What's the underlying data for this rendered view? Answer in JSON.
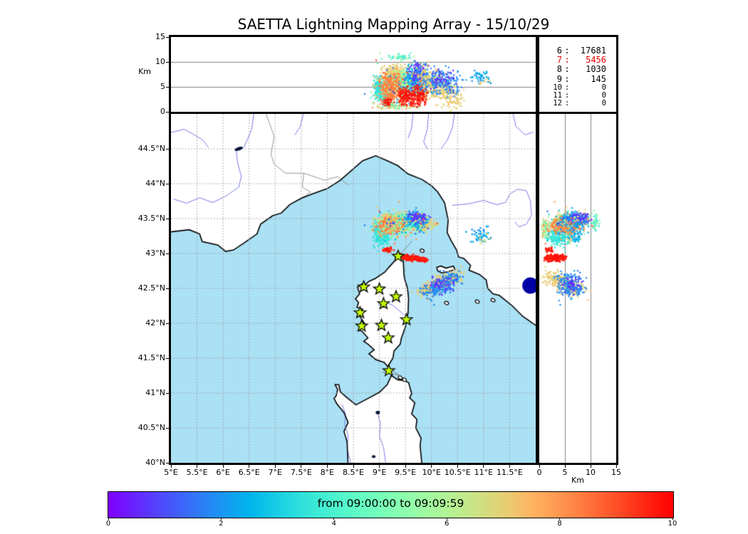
{
  "title": "SAETTA Lightning Mapping Array - 15/10/29",
  "colors": {
    "sea": "#ABE1F5",
    "land": "#FFFFFF",
    "coastline": "#000000",
    "grid_map": "#999999",
    "grid_panel": "#808080",
    "river": "#7B7BE8",
    "country_border": "#8A8A8A",
    "route_line": "#777777",
    "lake": "#001133",
    "star_fill": "#C3FF00",
    "star_edge": "#111111",
    "navy_marker": "#0000A5",
    "highlight_count": "#E60000",
    "panel_border": "#000000"
  },
  "axes": {
    "alt_lon_panel": {
      "ylabel": "Km",
      "ytick_values": [
        0,
        5,
        10,
        15
      ],
      "ytick_labels": [
        "0",
        "5",
        "10",
        "15"
      ],
      "ylim": [
        0,
        15
      ],
      "gridlines_alt": [
        5,
        10
      ]
    },
    "map_panel": {
      "xtick_values": [
        5,
        5.5,
        6,
        6.5,
        7,
        7.5,
        8,
        8.5,
        9,
        9.5,
        10,
        10.5,
        11,
        11.5
      ],
      "xtick_labels": [
        "5°E",
        "5.5°E",
        "6°E",
        "6.5°E",
        "7°E",
        "7.5°E",
        "8°E",
        "8.5°E",
        "9°E",
        "9.5°E",
        "10°E",
        "10.5°E",
        "11°E",
        "11.5°E"
      ],
      "ytick_values": [
        44.5,
        44,
        43.5,
        43,
        42.5,
        42,
        41.5,
        41,
        40.5,
        40
      ],
      "ytick_labels": [
        "44.5°N",
        "44°N",
        "43.5°N",
        "43°N",
        "42.5°N",
        "42°N",
        "41.5°N",
        "41°N",
        "40.5°N",
        "40°N"
      ],
      "lon_range": [
        5,
        12
      ],
      "lat_range": [
        40,
        45
      ],
      "grid_step_deg": 0.5
    },
    "alt_lat_panel": {
      "xlabel": "Km",
      "xtick_values": [
        0,
        5,
        10,
        15
      ],
      "xtick_labels": [
        "0",
        "5",
        "10",
        "15"
      ],
      "xlim": [
        0,
        15
      ],
      "gridlines_alt": [
        5,
        10
      ]
    }
  },
  "colorbar": {
    "label": "from 09:00:00 to 09:09:59",
    "tick_values": [
      0,
      2,
      4,
      6,
      8,
      10
    ],
    "tick_labels": [
      "0",
      "2",
      "4",
      "6",
      "8",
      "10"
    ],
    "range": [
      0,
      10
    ],
    "colormap": "rainbow"
  },
  "chart_data": {
    "type": "scatter",
    "title": "SAETTA Lightning Mapping Array - 15/10/29",
    "layout": "lon-alt top panel, lon-lat map, alt-lat side panel, time colorbar",
    "station_counts": [
      {
        "stations": "6",
        "events": "17681",
        "highlight": false
      },
      {
        "stations": "7",
        "events": "5456",
        "highlight": true
      },
      {
        "stations": "8",
        "events": "1030",
        "highlight": false
      },
      {
        "stations": "9",
        "events": "145",
        "highlight": false
      },
      {
        "stations": "10",
        "events": "0",
        "highlight": false
      },
      {
        "stations": "11",
        "events": "0",
        "highlight": false
      },
      {
        "stations": "12",
        "events": "0",
        "highlight": false
      }
    ],
    "stations_lonlat": [
      [
        9.36,
        42.96
      ],
      [
        8.7,
        42.52
      ],
      [
        9.0,
        42.49
      ],
      [
        9.32,
        42.38
      ],
      [
        9.08,
        42.28
      ],
      [
        8.63,
        42.15
      ],
      [
        9.52,
        42.05
      ],
      [
        8.66,
        41.96
      ],
      [
        9.04,
        41.97
      ],
      [
        9.17,
        41.79
      ],
      [
        9.18,
        41.32
      ]
    ],
    "edge_marker_lonlat": [
      11.9,
      42.54
    ],
    "clusters": [
      {
        "name": "storm-north-cyan-west",
        "shape": "blob",
        "lon": 9.0,
        "lat": 43.3,
        "sx": 0.06,
        "sy": 0.085,
        "alt": [
          2,
          7.5
        ],
        "t": [
          3.1,
          3.9
        ],
        "n": 230
      },
      {
        "name": "storm-north-cyan-col",
        "shape": "blob",
        "lon": 9.12,
        "lat": 43.21,
        "sx": 0.035,
        "sy": 0.045,
        "alt": [
          1,
          4.5
        ],
        "t": [
          3.2,
          3.9
        ],
        "n": 80
      },
      {
        "name": "storm-north-tan",
        "shape": "blob",
        "lon": 9.28,
        "lat": 43.47,
        "sx": 0.13,
        "sy": 0.045,
        "alt": [
          3,
          10
        ],
        "t": [
          6.7,
          7.3
        ],
        "n": 520
      },
      {
        "name": "storm-north-tan-east",
        "shape": "blob",
        "lon": 9.85,
        "lat": 43.42,
        "sx": 0.1,
        "sy": 0.05,
        "alt": [
          2,
          8
        ],
        "t": [
          6.6,
          7.2
        ],
        "n": 180
      },
      {
        "name": "storm-north-green",
        "shape": "blob",
        "lon": 9.52,
        "lat": 43.45,
        "sx": 0.11,
        "sy": 0.05,
        "alt": [
          3,
          9
        ],
        "t": [
          5.3,
          6.1
        ],
        "n": 320
      },
      {
        "name": "storm-north-orange",
        "shape": "blob",
        "lon": 9.22,
        "lat": 43.4,
        "sx": 0.085,
        "sy": 0.05,
        "alt": [
          2,
          8
        ],
        "t": [
          7.9,
          8.6
        ],
        "n": 520
      },
      {
        "name": "storm-north-blue",
        "shape": "blob",
        "lon": 9.68,
        "lat": 43.47,
        "sx": 0.095,
        "sy": 0.045,
        "alt": [
          3.5,
          10
        ],
        "t": [
          1.6,
          2.6
        ],
        "n": 260
      },
      {
        "name": "storm-north-purple",
        "shape": "blob",
        "lon": 9.75,
        "lat": 43.51,
        "sx": 0.075,
        "sy": 0.035,
        "alt": [
          5,
          10.5
        ],
        "t": [
          0.3,
          1.1
        ],
        "n": 110
      },
      {
        "name": "storm-high-sparse",
        "shape": "blob",
        "lon": 9.4,
        "lat": 43.45,
        "sx": 0.15,
        "sy": 0.06,
        "alt": [
          10,
          12
        ],
        "t": [
          3.0,
          6.0
        ],
        "n": 45
      },
      {
        "name": "storm-low-skirt",
        "shape": "blob",
        "lon": 9.3,
        "lat": 43.36,
        "sx": 0.18,
        "sy": 0.07,
        "alt": [
          0.3,
          2.2
        ],
        "t": [
          4.0,
          8.5
        ],
        "n": 110
      },
      {
        "name": "storm-noise",
        "shape": "blob",
        "lon": 9.4,
        "lat": 43.42,
        "sx": 0.28,
        "sy": 0.11,
        "alt": [
          0.5,
          11
        ],
        "t": [
          1.0,
          9.0
        ],
        "n": 130
      },
      {
        "name": "capcorse-red-streak",
        "shape": "diag",
        "lon0": 9.38,
        "lat0": 42.96,
        "lon1": 9.88,
        "lat1": 42.91,
        "jlon": 0.03,
        "jlat": 0.016,
        "alt": [
          0.8,
          5.5
        ],
        "t": [
          9.4,
          10.0
        ],
        "n": 300
      },
      {
        "name": "capcorse-red-dots",
        "shape": "blob",
        "lon": 9.16,
        "lat": 43.05,
        "sx": 0.05,
        "sy": 0.016,
        "alt": [
          1,
          3
        ],
        "t": [
          9.3,
          9.9
        ],
        "n": 45
      },
      {
        "name": "elba-tan-diag",
        "shape": "diag",
        "lon0": 10.52,
        "lat0": 42.7,
        "lon1": 9.8,
        "lat1": 42.44,
        "jlon": 0.075,
        "jlat": 0.045,
        "alt": [
          2.0,
          7.5
        ],
        "alt_mode": "lerp",
        "jalt": 1.2,
        "t": [
          6.7,
          7.3
        ],
        "n": 360
      },
      {
        "name": "elba-blue",
        "shape": "diag",
        "lon0": 10.45,
        "lat0": 42.68,
        "lon1": 9.92,
        "lat1": 42.42,
        "jlon": 0.1,
        "jlat": 0.06,
        "alt": [
          2.5,
          9.5
        ],
        "t": [
          1.4,
          2.2
        ],
        "n": 200
      },
      {
        "name": "elba-purple",
        "shape": "blob",
        "lon": 10.2,
        "lat": 42.55,
        "sx": 0.11,
        "sy": 0.065,
        "alt": [
          4,
          9
        ],
        "t": [
          0.3,
          1.0
        ],
        "n": 45
      },
      {
        "name": "tuscany-inland-blue",
        "shape": "blob",
        "lon": 10.95,
        "lat": 43.25,
        "sx": 0.09,
        "sy": 0.055,
        "alt": [
          5.5,
          8.5
        ],
        "t": [
          1.8,
          2.7
        ],
        "n": 50
      },
      {
        "name": "tuscany-inland-tan",
        "shape": "blob",
        "lon": 11.0,
        "lat": 43.2,
        "sx": 0.06,
        "sy": 0.04,
        "alt": [
          5,
          7
        ],
        "t": [
          6.8,
          7.1
        ],
        "n": 8
      }
    ]
  }
}
